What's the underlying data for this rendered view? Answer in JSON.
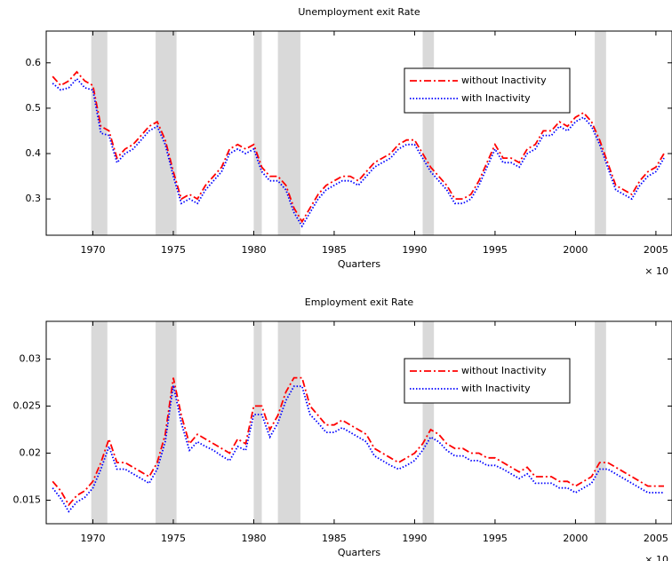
{
  "chart_data": [
    {
      "type": "line",
      "title": "Unemployment exit Rate",
      "xlabel": "Quarters",
      "annotation": "× 10",
      "x": [
        1967.5,
        1968,
        1968.5,
        1969,
        1969.5,
        1970,
        1970.5,
        1971,
        1971.5,
        1972,
        1972.5,
        1973,
        1973.5,
        1974,
        1974.5,
        1975,
        1975.5,
        1976,
        1976.5,
        1977,
        1977.5,
        1978,
        1978.5,
        1979,
        1979.5,
        1980,
        1980.5,
        1981,
        1981.5,
        1982,
        1982.5,
        1983,
        1983.5,
        1984,
        1984.5,
        1985,
        1985.5,
        1986,
        1986.5,
        1987,
        1987.5,
        1988,
        1988.5,
        1989,
        1989.5,
        1990,
        1990.5,
        1991,
        1991.5,
        1992,
        1992.5,
        1993,
        1993.5,
        1994,
        1994.5,
        1995,
        1995.5,
        1996,
        1996.5,
        1997,
        1997.5,
        1998,
        1998.5,
        1999,
        1999.5,
        2000,
        2000.5,
        2001,
        2001.5,
        2002,
        2002.5,
        2003,
        2003.5,
        2004,
        2004.5,
        2005,
        2005.5
      ],
      "series": [
        {
          "name": "without Inactivity",
          "color": "#ff0000",
          "style": "dashdot",
          "values": [
            0.57,
            0.55,
            0.56,
            0.58,
            0.56,
            0.55,
            0.46,
            0.45,
            0.39,
            0.41,
            0.42,
            0.44,
            0.46,
            0.47,
            0.43,
            0.36,
            0.3,
            0.31,
            0.3,
            0.33,
            0.35,
            0.37,
            0.41,
            0.42,
            0.41,
            0.42,
            0.37,
            0.35,
            0.35,
            0.33,
            0.28,
            0.25,
            0.28,
            0.31,
            0.33,
            0.34,
            0.35,
            0.35,
            0.34,
            0.36,
            0.38,
            0.39,
            0.4,
            0.42,
            0.43,
            0.43,
            0.4,
            0.37,
            0.35,
            0.33,
            0.3,
            0.3,
            0.31,
            0.34,
            0.38,
            0.42,
            0.39,
            0.39,
            0.38,
            0.41,
            0.42,
            0.45,
            0.45,
            0.47,
            0.46,
            0.48,
            0.49,
            0.47,
            0.43,
            0.38,
            0.33,
            0.32,
            0.31,
            0.34,
            0.36,
            0.37,
            0.4
          ]
        },
        {
          "name": "with Inactivity",
          "color": "#0000ff",
          "style": "dotted",
          "values": [
            0.555,
            0.54,
            0.545,
            0.565,
            0.545,
            0.54,
            0.445,
            0.44,
            0.38,
            0.4,
            0.41,
            0.43,
            0.45,
            0.46,
            0.42,
            0.35,
            0.29,
            0.3,
            0.29,
            0.32,
            0.34,
            0.36,
            0.4,
            0.41,
            0.4,
            0.41,
            0.36,
            0.34,
            0.34,
            0.32,
            0.27,
            0.24,
            0.27,
            0.3,
            0.32,
            0.33,
            0.34,
            0.34,
            0.33,
            0.35,
            0.37,
            0.38,
            0.39,
            0.41,
            0.42,
            0.42,
            0.39,
            0.36,
            0.34,
            0.32,
            0.29,
            0.29,
            0.3,
            0.33,
            0.37,
            0.41,
            0.38,
            0.38,
            0.37,
            0.4,
            0.41,
            0.44,
            0.44,
            0.46,
            0.45,
            0.47,
            0.48,
            0.46,
            0.42,
            0.37,
            0.32,
            0.31,
            0.3,
            0.33,
            0.35,
            0.36,
            0.39
          ]
        }
      ],
      "shaded_regions": [
        [
          1969.9,
          1970.9
        ],
        [
          1973.9,
          1975.2
        ],
        [
          1980.0,
          1980.5
        ],
        [
          1981.5,
          1982.9
        ],
        [
          1990.5,
          1991.2
        ],
        [
          2001.2,
          2001.9
        ]
      ],
      "shade_color": "#d9d9d9",
      "xlim": [
        1967.1,
        2006
      ],
      "xticks": [
        1970,
        1975,
        1980,
        1985,
        1990,
        1995,
        2000,
        2005
      ],
      "ylim": [
        0.22,
        0.67
      ],
      "yticks": [
        0.3,
        0.4,
        0.5,
        0.6
      ],
      "legend": "upper right"
    },
    {
      "type": "line",
      "title": "Employment exit Rate",
      "xlabel": "Quarters",
      "annotation": "× 10",
      "x": [
        1967.5,
        1968,
        1968.5,
        1969,
        1969.5,
        1970,
        1970.5,
        1971,
        1971.5,
        1972,
        1972.5,
        1973,
        1973.5,
        1974,
        1974.5,
        1975,
        1975.5,
        1976,
        1976.5,
        1977,
        1977.5,
        1978,
        1978.5,
        1979,
        1979.5,
        1980,
        1980.5,
        1981,
        1981.5,
        1982,
        1982.5,
        1983,
        1983.5,
        1984,
        1984.5,
        1985,
        1985.5,
        1986,
        1986.5,
        1987,
        1987.5,
        1988,
        1988.5,
        1989,
        1989.5,
        1990,
        1990.5,
        1991,
        1991.5,
        1992,
        1992.5,
        1993,
        1993.5,
        1994,
        1994.5,
        1995,
        1995.5,
        1996,
        1996.5,
        1997,
        1997.5,
        1998,
        1998.5,
        1999,
        1999.5,
        2000,
        2000.5,
        2001,
        2001.5,
        2002,
        2002.5,
        2003,
        2003.5,
        2004,
        2004.5,
        2005,
        2005.5
      ],
      "series": [
        {
          "name": "without Inactivity",
          "color": "#ff0000",
          "style": "dashdot",
          "values": [
            0.017,
            0.016,
            0.0145,
            0.0155,
            0.016,
            0.017,
            0.019,
            0.0215,
            0.019,
            0.019,
            0.0185,
            0.018,
            0.0175,
            0.019,
            0.022,
            0.028,
            0.024,
            0.021,
            0.022,
            0.0215,
            0.021,
            0.0205,
            0.02,
            0.0215,
            0.021,
            0.025,
            0.025,
            0.0225,
            0.024,
            0.0265,
            0.028,
            0.028,
            0.025,
            0.024,
            0.023,
            0.023,
            0.0235,
            0.023,
            0.0225,
            0.022,
            0.0205,
            0.02,
            0.0195,
            0.019,
            0.0195,
            0.02,
            0.021,
            0.0225,
            0.022,
            0.021,
            0.0205,
            0.0205,
            0.02,
            0.02,
            0.0195,
            0.0195,
            0.019,
            0.0185,
            0.018,
            0.0185,
            0.0175,
            0.0175,
            0.0175,
            0.017,
            0.017,
            0.0165,
            0.017,
            0.0175,
            0.019,
            0.019,
            0.0185,
            0.018,
            0.0175,
            0.017,
            0.0165,
            0.0165,
            0.0165
          ]
        },
        {
          "name": "with Inactivity",
          "color": "#0000ff",
          "style": "dotted",
          "values": [
            0.0163,
            0.0152,
            0.0138,
            0.0148,
            0.0153,
            0.0163,
            0.0183,
            0.0207,
            0.0183,
            0.0183,
            0.0178,
            0.0173,
            0.0168,
            0.0183,
            0.0212,
            0.0272,
            0.0232,
            0.0203,
            0.0212,
            0.0207,
            0.0203,
            0.0197,
            0.0192,
            0.0207,
            0.0203,
            0.0241,
            0.0241,
            0.0217,
            0.0232,
            0.0256,
            0.0271,
            0.0271,
            0.0241,
            0.0232,
            0.0222,
            0.0222,
            0.0227,
            0.0222,
            0.0217,
            0.0212,
            0.0197,
            0.0192,
            0.0187,
            0.0183,
            0.0187,
            0.0192,
            0.0203,
            0.0217,
            0.0212,
            0.0203,
            0.0197,
            0.0197,
            0.0192,
            0.0192,
            0.0187,
            0.0187,
            0.0183,
            0.0178,
            0.0173,
            0.0178,
            0.0168,
            0.0168,
            0.0168,
            0.0163,
            0.0163,
            0.0158,
            0.0163,
            0.0168,
            0.0183,
            0.0183,
            0.0178,
            0.0173,
            0.0168,
            0.0163,
            0.0158,
            0.0158,
            0.0158
          ]
        }
      ],
      "shaded_regions": [
        [
          1969.9,
          1970.9
        ],
        [
          1973.9,
          1975.2
        ],
        [
          1980.0,
          1980.5
        ],
        [
          1981.5,
          1982.9
        ],
        [
          1990.5,
          1991.2
        ],
        [
          2001.2,
          2001.9
        ]
      ],
      "shade_color": "#d9d9d9",
      "xlim": [
        1967.1,
        2006
      ],
      "xticks": [
        1970,
        1975,
        1980,
        1985,
        1990,
        1995,
        2000,
        2005
      ],
      "ylim": [
        0.0125,
        0.034
      ],
      "yticks": [
        0.015,
        0.02,
        0.025,
        0.03
      ],
      "legend": "upper right"
    }
  ]
}
